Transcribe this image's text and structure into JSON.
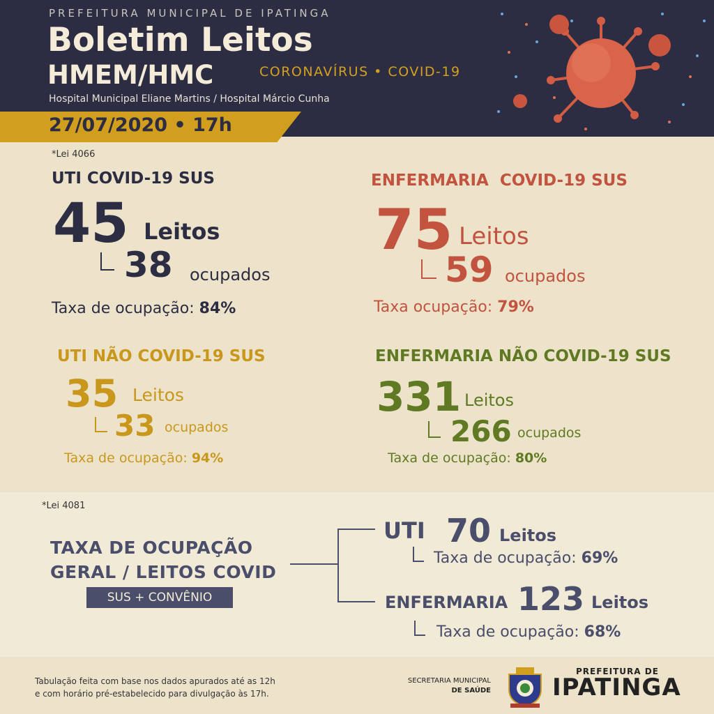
{
  "header": {
    "prefeitura": "PREFEITURA MUNICIPAL DE IPATINGA",
    "title_line1": "Boletim Leitos",
    "title_line2": "HMEM/HMC",
    "tag": "CORONAVÍRUS • COVID-19",
    "hospitals": "Hospital Municipal Eliane Martins / Hospital Márcio Cunha",
    "date": "27/07/2020 • 17h"
  },
  "colors": {
    "navy": "#2c2c42",
    "red": "#c2533f",
    "gold": "#c9971c",
    "green": "#5f7a22",
    "slate": "#4a4e6a",
    "background": "#ede3cb"
  },
  "section1": {
    "note": "*Lei 4066",
    "uti_covid": {
      "title": "UTI COVID-19 SUS",
      "total": "45",
      "total_unit": "Leitos",
      "occupied": "38",
      "occupied_unit": "ocupados",
      "rate_label": "Taxa de ocupação:",
      "rate": "84%"
    },
    "enf_covid": {
      "title": "ENFERMARIA  COVID-19 SUS",
      "total": "75",
      "total_unit": "Leitos",
      "occupied": "59",
      "occupied_unit": "ocupados",
      "rate_label": "Taxa ocupação:",
      "rate": "79%"
    },
    "uti_nao_covid": {
      "title": "UTI NÃO COVID-19 SUS",
      "total": "35",
      "total_unit": "Leitos",
      "occupied": "33",
      "occupied_unit": "ocupados",
      "rate_label": "Taxa de ocupação:",
      "rate": "94%"
    },
    "enf_nao_covid": {
      "title": "ENFERMARIA NÃO COVID-19 SUS",
      "total": "331",
      "total_unit": "Leitos",
      "occupied": "266",
      "occupied_unit": "ocupados",
      "rate_label": "Taxa de ocupação:",
      "rate": "80%"
    }
  },
  "section2": {
    "note": "*Lei 4081",
    "title_line1": "TAXA DE OCUPAÇÃO",
    "title_line2": "GERAL / LEITOS COVID",
    "badge": "SUS + CONVÊNIO",
    "uti": {
      "label": "UTI",
      "total": "70",
      "total_unit": "Leitos",
      "rate_label": "Taxa de ocupação:",
      "rate": "69%"
    },
    "enfermaria": {
      "label": "ENFERMARIA",
      "total": "123",
      "total_unit": "Leitos",
      "rate_label": "Taxa de ocupação:",
      "rate": "68%"
    }
  },
  "footer": {
    "note_line1": "Tabulação feita com base nos dados apurados até as 12h",
    "note_line2": "e com horário pré-estabelecido para divulgação às 17h.",
    "secretaria_line1": "SECRETARIA MUNICIPAL",
    "secretaria_line2": "DE SAÚDE",
    "logo_small": "PREFEITURA DE",
    "logo_big": "IPATINGA",
    "crest_icon": "ipatinga-crest-icon"
  }
}
